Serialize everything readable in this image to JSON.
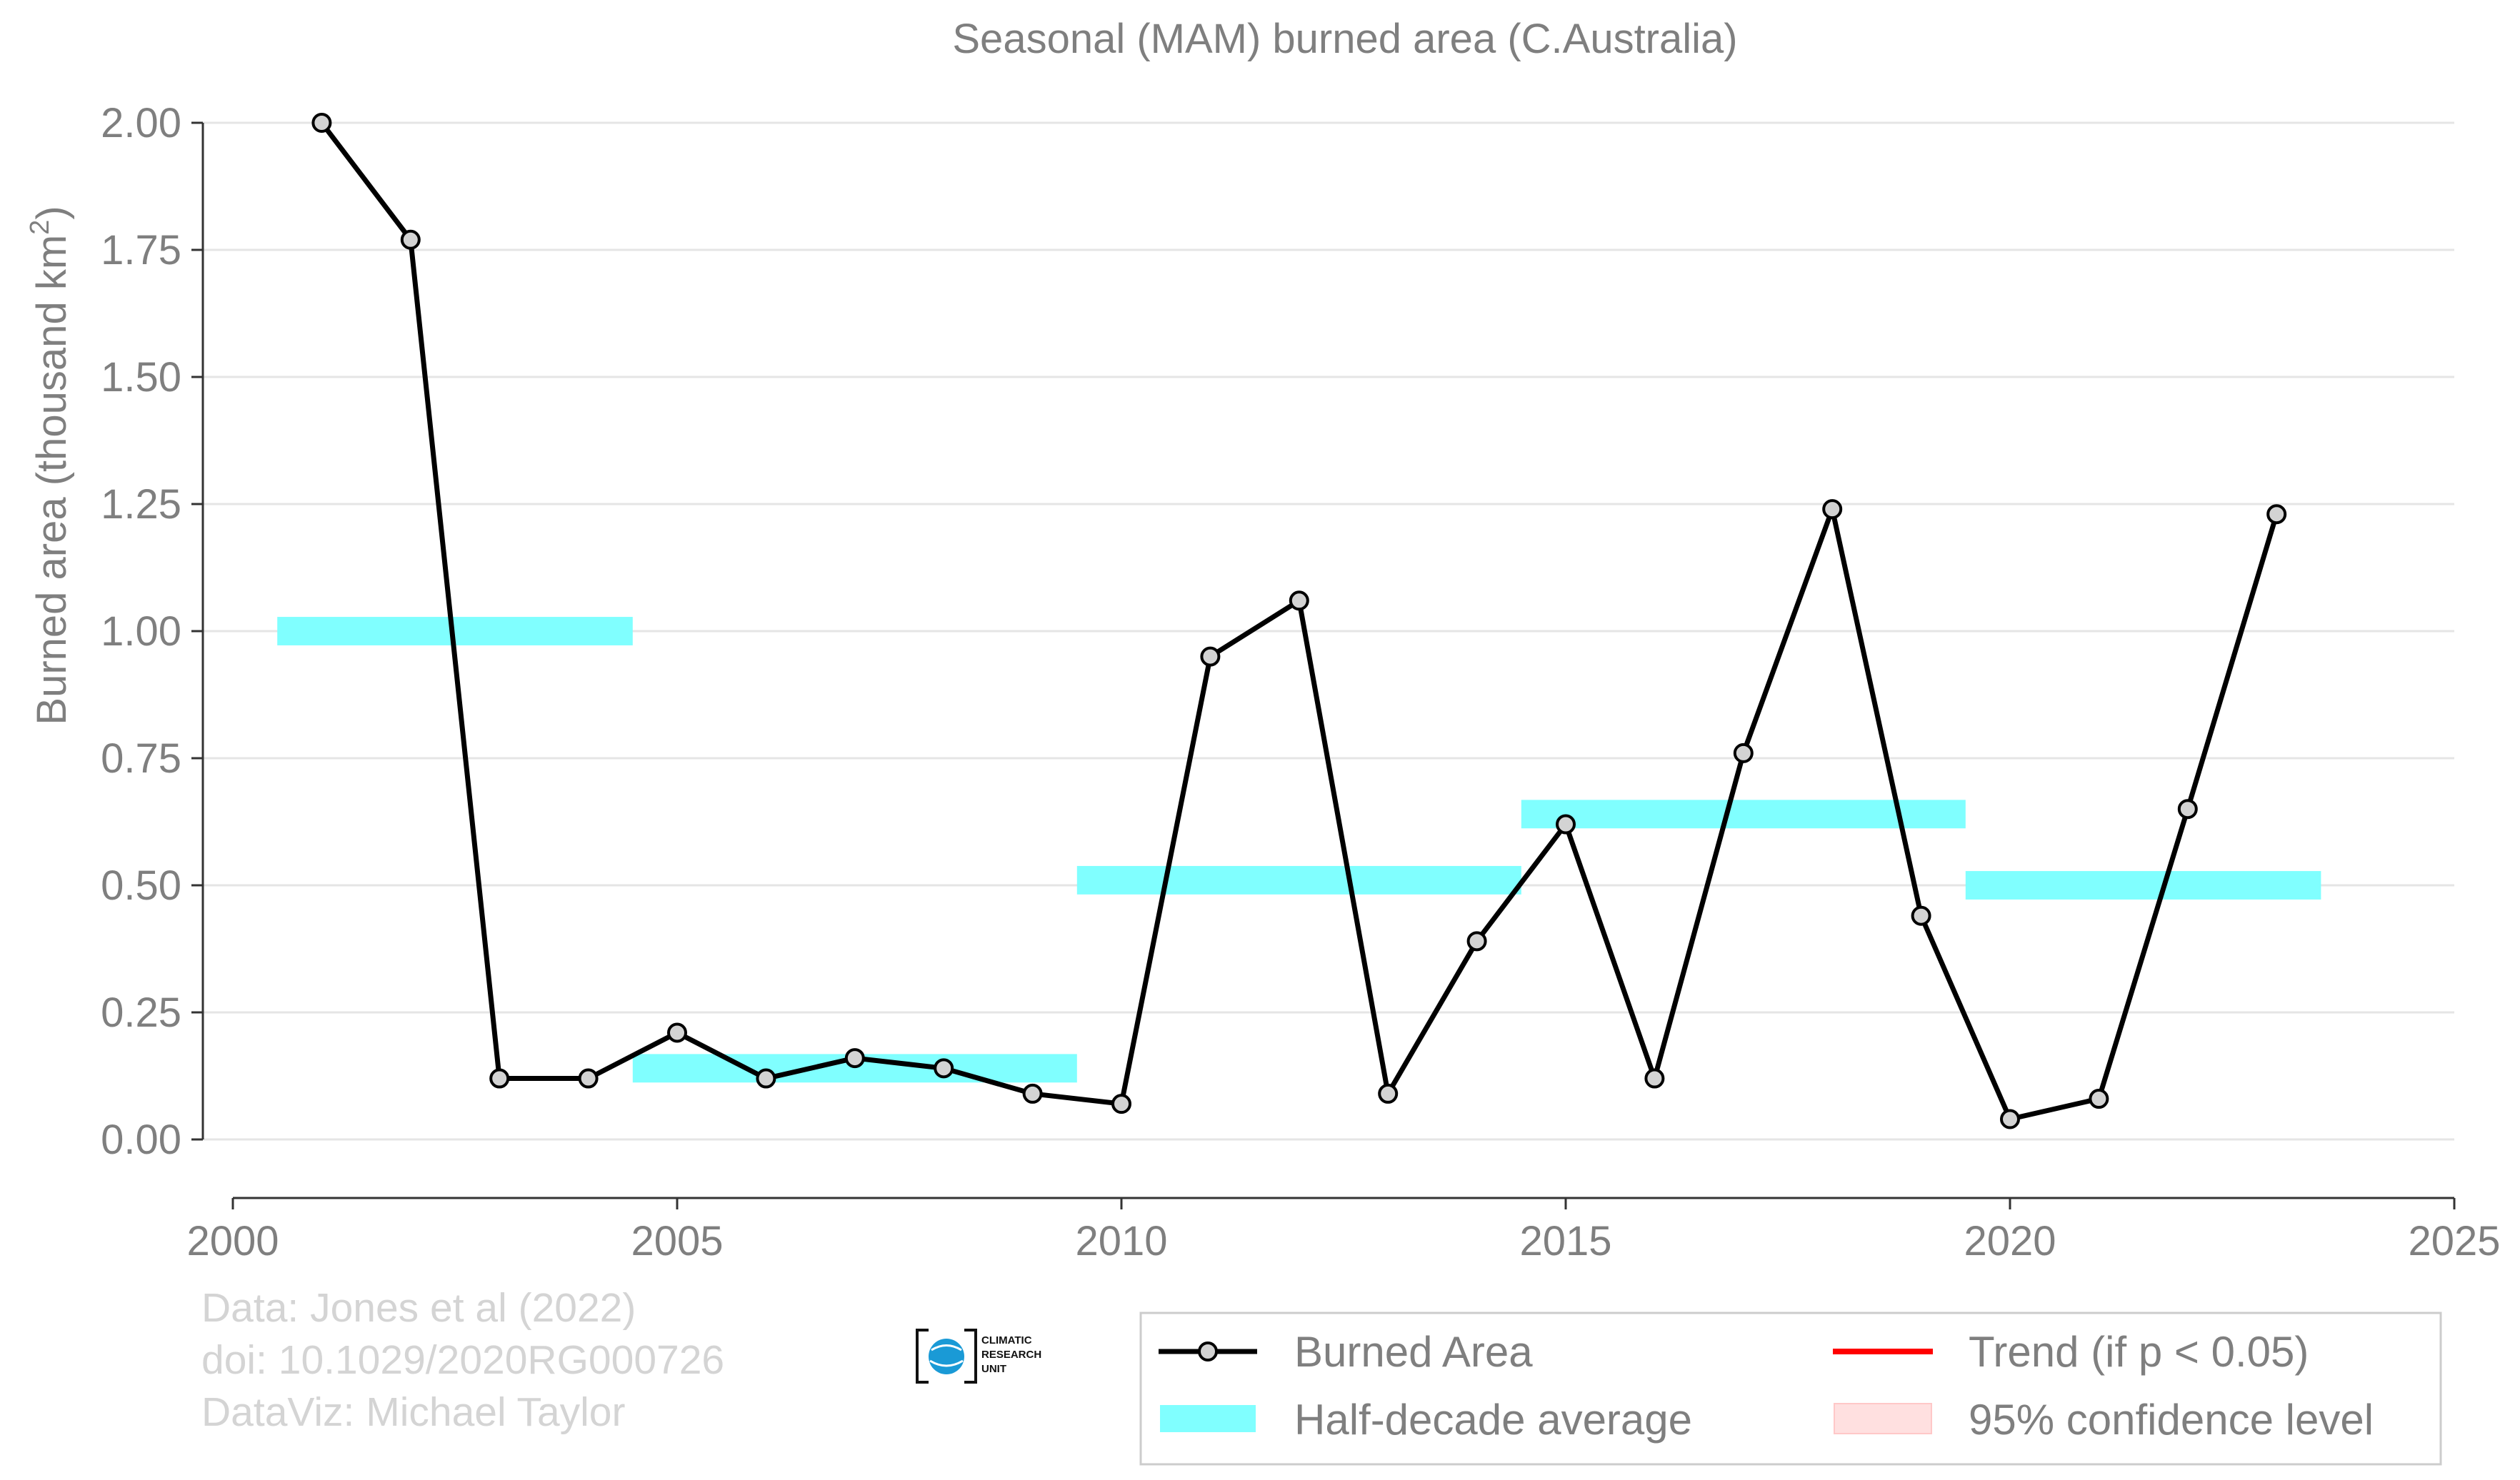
{
  "chart_data": {
    "type": "line",
    "title": "Seasonal (MAM) burned area (C.Australia)",
    "ylabel": "Burned area (thousand km",
    "ylabel_sup": "2",
    "ylabel_end": ")",
    "xlabel": "",
    "xlim": [
      2000,
      2025
    ],
    "ylim": [
      0,
      2.0
    ],
    "xticks": [
      2000,
      2005,
      2010,
      2015,
      2020,
      2025
    ],
    "yticks": [
      0.0,
      0.25,
      0.5,
      0.75,
      1.0,
      1.25,
      1.5,
      1.75,
      2.0
    ],
    "ytick_labels": [
      "0.00",
      "0.25",
      "0.50",
      "0.75",
      "1.00",
      "1.25",
      "1.50",
      "1.75",
      "2.00"
    ],
    "grid": "horizontal",
    "legend_position": "bottom-right",
    "series": [
      {
        "name": "Burned Area",
        "color": "#000000",
        "marker_fill": "#d3d3d3",
        "x": [
          2001,
          2002,
          2003,
          2004,
          2005,
          2006,
          2007,
          2008,
          2009,
          2010,
          2011,
          2012,
          2013,
          2014,
          2015,
          2016,
          2017,
          2018,
          2019,
          2020,
          2021,
          2022,
          2023
        ],
        "y": [
          2.0,
          1.77,
          0.12,
          0.12,
          0.21,
          0.12,
          0.16,
          0.14,
          0.09,
          0.07,
          0.95,
          1.06,
          0.09,
          0.39,
          0.62,
          0.12,
          0.76,
          1.24,
          0.44,
          0.04,
          0.08,
          0.65,
          1.23
        ]
      }
    ],
    "half_decade_average": {
      "name": "Half-decade average",
      "color": "#80ffff",
      "segments": [
        {
          "x0": 2000.5,
          "x1": 2004.5,
          "y": 1.0
        },
        {
          "x0": 2004.5,
          "x1": 2009.5,
          "y": 0.14
        },
        {
          "x0": 2009.5,
          "x1": 2014.5,
          "y": 0.51
        },
        {
          "x0": 2014.5,
          "x1": 2019.5,
          "y": 0.64
        },
        {
          "x0": 2019.5,
          "x1": 2023.5,
          "y": 0.5
        }
      ]
    },
    "trend": {
      "name": "Trend (if p < 0.05)",
      "color": "#ff0000"
    },
    "confidence": {
      "name": "95% confidence level",
      "color": "#ffe0e0"
    }
  },
  "credits": [
    "Data: Jones et al (2022)",
    "doi: 10.1029/2020RG000726",
    "DataViz: Michael Taylor"
  ],
  "logo": {
    "icon": "globe-icon",
    "lines": [
      "CLIMATIC",
      "RESEARCH",
      "UNIT"
    ]
  }
}
